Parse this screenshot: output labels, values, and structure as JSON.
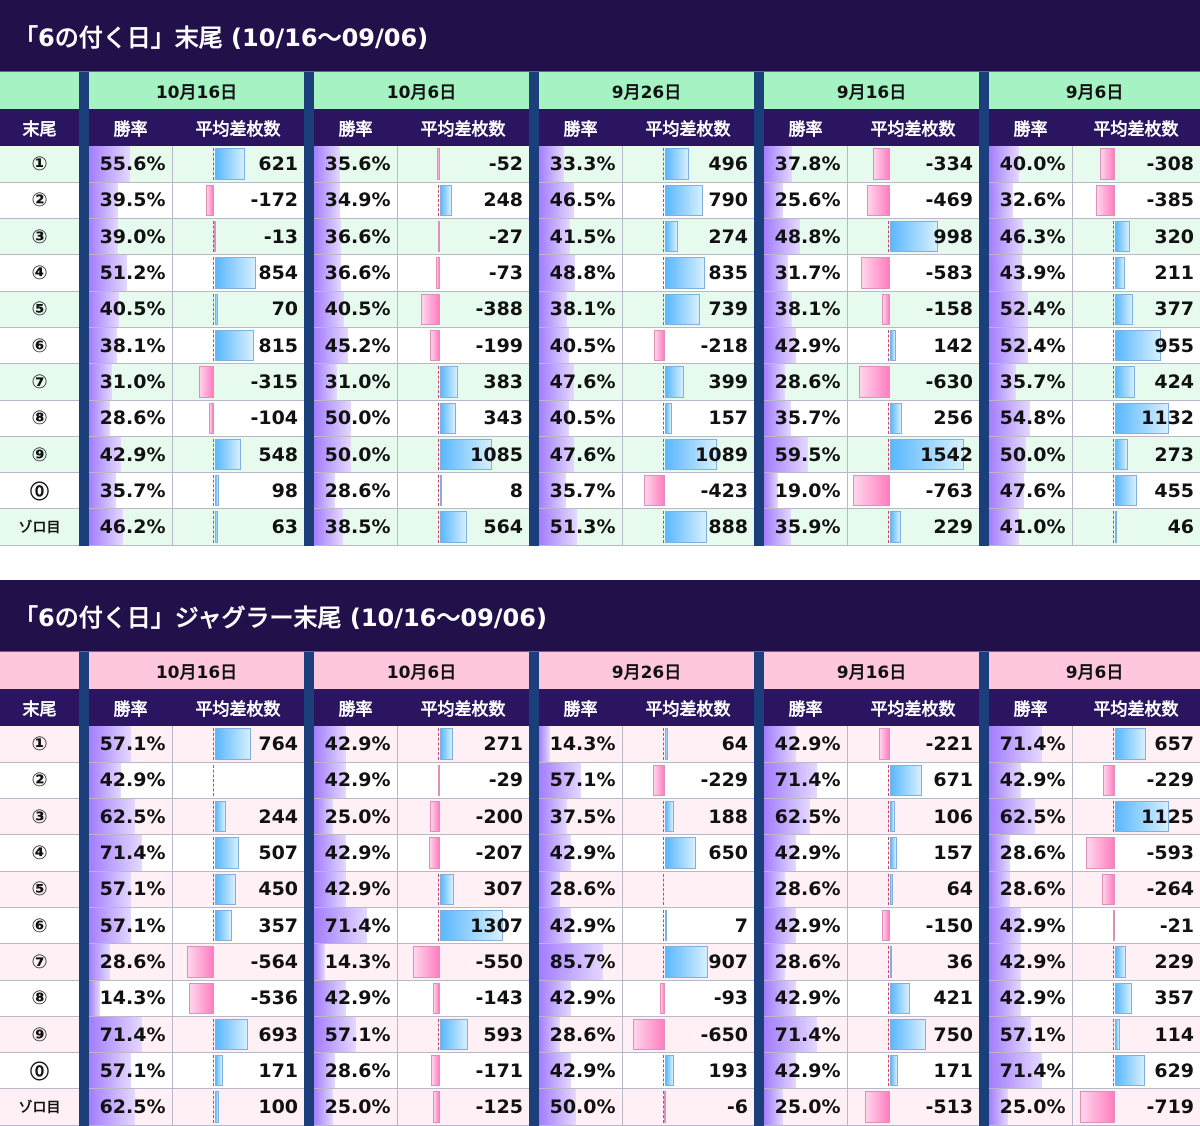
{
  "sections": [
    {
      "title": "「6の付く日」末尾 (10/16〜09/06)",
      "theme": "green",
      "label_header": "末尾",
      "rate_header": "勝率",
      "diff_header": "平均差枚数",
      "dates": [
        "10月16日",
        "10月6日",
        "9月26日",
        "9月16日",
        "9月6日"
      ],
      "rows": [
        {
          "label": "①",
          "cells": [
            {
              "rate": "55.6%",
              "diff": "621"
            },
            {
              "rate": "35.6%",
              "diff": "-52"
            },
            {
              "rate": "33.3%",
              "diff": "496"
            },
            {
              "rate": "37.8%",
              "diff": "-334"
            },
            {
              "rate": "40.0%",
              "diff": "-308"
            }
          ]
        },
        {
          "label": "②",
          "cells": [
            {
              "rate": "39.5%",
              "diff": "-172"
            },
            {
              "rate": "34.9%",
              "diff": "248"
            },
            {
              "rate": "46.5%",
              "diff": "790"
            },
            {
              "rate": "25.6%",
              "diff": "-469"
            },
            {
              "rate": "32.6%",
              "diff": "-385"
            }
          ]
        },
        {
          "label": "③",
          "cells": [
            {
              "rate": "39.0%",
              "diff": "-13"
            },
            {
              "rate": "36.6%",
              "diff": "-27"
            },
            {
              "rate": "41.5%",
              "diff": "274"
            },
            {
              "rate": "48.8%",
              "diff": "998"
            },
            {
              "rate": "46.3%",
              "diff": "320"
            }
          ]
        },
        {
          "label": "④",
          "cells": [
            {
              "rate": "51.2%",
              "diff": "854"
            },
            {
              "rate": "36.6%",
              "diff": "-73"
            },
            {
              "rate": "48.8%",
              "diff": "835"
            },
            {
              "rate": "31.7%",
              "diff": "-583"
            },
            {
              "rate": "43.9%",
              "diff": "211"
            }
          ]
        },
        {
          "label": "⑤",
          "cells": [
            {
              "rate": "40.5%",
              "diff": "70"
            },
            {
              "rate": "40.5%",
              "diff": "-388"
            },
            {
              "rate": "38.1%",
              "diff": "739"
            },
            {
              "rate": "38.1%",
              "diff": "-158"
            },
            {
              "rate": "52.4%",
              "diff": "377"
            }
          ]
        },
        {
          "label": "⑥",
          "cells": [
            {
              "rate": "38.1%",
              "diff": "815"
            },
            {
              "rate": "45.2%",
              "diff": "-199"
            },
            {
              "rate": "40.5%",
              "diff": "-218"
            },
            {
              "rate": "42.9%",
              "diff": "142"
            },
            {
              "rate": "52.4%",
              "diff": "955"
            }
          ]
        },
        {
          "label": "⑦",
          "cells": [
            {
              "rate": "31.0%",
              "diff": "-315"
            },
            {
              "rate": "31.0%",
              "diff": "383"
            },
            {
              "rate": "47.6%",
              "diff": "399"
            },
            {
              "rate": "28.6%",
              "diff": "-630"
            },
            {
              "rate": "35.7%",
              "diff": "424"
            }
          ]
        },
        {
          "label": "⑧",
          "cells": [
            {
              "rate": "28.6%",
              "diff": "-104"
            },
            {
              "rate": "50.0%",
              "diff": "343"
            },
            {
              "rate": "40.5%",
              "diff": "157"
            },
            {
              "rate": "35.7%",
              "diff": "256"
            },
            {
              "rate": "54.8%",
              "diff": "1132"
            }
          ]
        },
        {
          "label": "⑨",
          "cells": [
            {
              "rate": "42.9%",
              "diff": "548"
            },
            {
              "rate": "50.0%",
              "diff": "1085"
            },
            {
              "rate": "47.6%",
              "diff": "1089"
            },
            {
              "rate": "59.5%",
              "diff": "1542"
            },
            {
              "rate": "50.0%",
              "diff": "273"
            }
          ]
        },
        {
          "label": "⓪",
          "cells": [
            {
              "rate": "35.7%",
              "diff": "98"
            },
            {
              "rate": "28.6%",
              "diff": "8"
            },
            {
              "rate": "35.7%",
              "diff": "-423"
            },
            {
              "rate": "19.0%",
              "diff": "-763"
            },
            {
              "rate": "47.6%",
              "diff": "455"
            }
          ]
        },
        {
          "label": "ゾロ目",
          "cells": [
            {
              "rate": "46.2%",
              "diff": "63"
            },
            {
              "rate": "38.5%",
              "diff": "564"
            },
            {
              "rate": "51.3%",
              "diff": "888"
            },
            {
              "rate": "35.9%",
              "diff": "229"
            },
            {
              "rate": "41.0%",
              "diff": "46"
            }
          ]
        }
      ]
    },
    {
      "title": "「6の付く日」ジャグラー末尾 (10/16〜09/06)",
      "theme": "pink",
      "label_header": "末尾",
      "rate_header": "勝率",
      "diff_header": "平均差枚数",
      "dates": [
        "10月16日",
        "10月6日",
        "9月26日",
        "9月16日",
        "9月6日"
      ],
      "rows": [
        {
          "label": "①",
          "cells": [
            {
              "rate": "57.1%",
              "diff": "764"
            },
            {
              "rate": "42.9%",
              "diff": "271"
            },
            {
              "rate": "14.3%",
              "diff": "64"
            },
            {
              "rate": "42.9%",
              "diff": "-221"
            },
            {
              "rate": "71.4%",
              "diff": "657"
            }
          ]
        },
        {
          "label": "②",
          "cells": [
            {
              "rate": "42.9%",
              "diff": ""
            },
            {
              "rate": "42.9%",
              "diff": "-29"
            },
            {
              "rate": "57.1%",
              "diff": "-229"
            },
            {
              "rate": "71.4%",
              "diff": "671"
            },
            {
              "rate": "42.9%",
              "diff": "-229"
            }
          ]
        },
        {
          "label": "③",
          "cells": [
            {
              "rate": "62.5%",
              "diff": "244"
            },
            {
              "rate": "25.0%",
              "diff": "-200"
            },
            {
              "rate": "37.5%",
              "diff": "188"
            },
            {
              "rate": "62.5%",
              "diff": "106"
            },
            {
              "rate": "62.5%",
              "diff": "1125"
            }
          ]
        },
        {
          "label": "④",
          "cells": [
            {
              "rate": "71.4%",
              "diff": "507"
            },
            {
              "rate": "42.9%",
              "diff": "-207"
            },
            {
              "rate": "42.9%",
              "diff": "650"
            },
            {
              "rate": "42.9%",
              "diff": "157"
            },
            {
              "rate": "28.6%",
              "diff": "-593"
            }
          ]
        },
        {
          "label": "⑤",
          "cells": [
            {
              "rate": "57.1%",
              "diff": "450"
            },
            {
              "rate": "42.9%",
              "diff": "307"
            },
            {
              "rate": "28.6%",
              "diff": ""
            },
            {
              "rate": "28.6%",
              "diff": "64"
            },
            {
              "rate": "28.6%",
              "diff": "-264"
            }
          ]
        },
        {
          "label": "⑥",
          "cells": [
            {
              "rate": "57.1%",
              "diff": "357"
            },
            {
              "rate": "71.4%",
              "diff": "1307"
            },
            {
              "rate": "42.9%",
              "diff": "7"
            },
            {
              "rate": "42.9%",
              "diff": "-150"
            },
            {
              "rate": "42.9%",
              "diff": "-21"
            }
          ]
        },
        {
          "label": "⑦",
          "cells": [
            {
              "rate": "28.6%",
              "diff": "-564"
            },
            {
              "rate": "14.3%",
              "diff": "-550"
            },
            {
              "rate": "85.7%",
              "diff": "907"
            },
            {
              "rate": "28.6%",
              "diff": "36"
            },
            {
              "rate": "42.9%",
              "diff": "229"
            }
          ]
        },
        {
          "label": "⑧",
          "cells": [
            {
              "rate": "14.3%",
              "diff": "-536"
            },
            {
              "rate": "42.9%",
              "diff": "-143"
            },
            {
              "rate": "42.9%",
              "diff": "-93"
            },
            {
              "rate": "42.9%",
              "diff": "421"
            },
            {
              "rate": "42.9%",
              "diff": "357"
            }
          ]
        },
        {
          "label": "⑨",
          "cells": [
            {
              "rate": "71.4%",
              "diff": "693"
            },
            {
              "rate": "57.1%",
              "diff": "593"
            },
            {
              "rate": "28.6%",
              "diff": "-650"
            },
            {
              "rate": "71.4%",
              "diff": "750"
            },
            {
              "rate": "57.1%",
              "diff": "114"
            }
          ]
        },
        {
          "label": "⓪",
          "cells": [
            {
              "rate": "57.1%",
              "diff": "171"
            },
            {
              "rate": "28.6%",
              "diff": "-171"
            },
            {
              "rate": "42.9%",
              "diff": "193"
            },
            {
              "rate": "42.9%",
              "diff": "171"
            },
            {
              "rate": "71.4%",
              "diff": "629"
            }
          ]
        },
        {
          "label": "ゾロ目",
          "cells": [
            {
              "rate": "62.5%",
              "diff": "100"
            },
            {
              "rate": "25.0%",
              "diff": "-125"
            },
            {
              "rate": "50.0%",
              "diff": "-6"
            },
            {
              "rate": "25.0%",
              "diff": "-513"
            },
            {
              "rate": "25.0%",
              "diff": "-719"
            }
          ]
        }
      ]
    }
  ]
}
